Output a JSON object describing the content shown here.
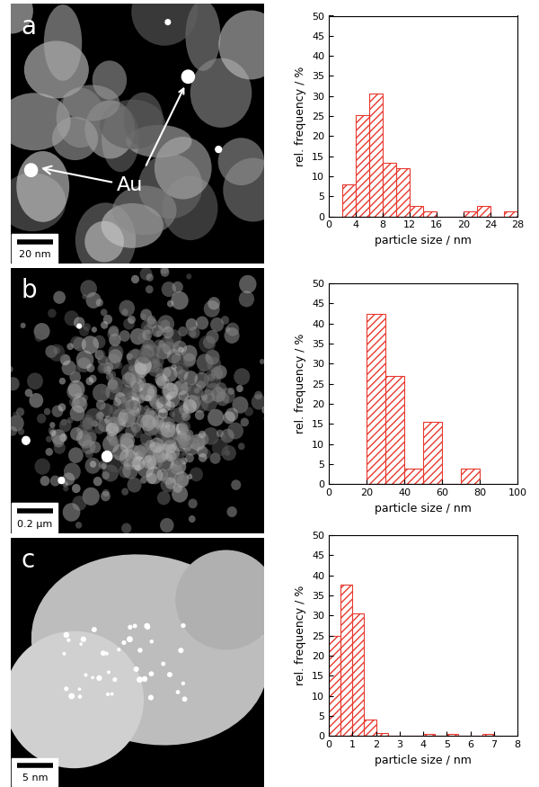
{
  "chart_data": [
    {
      "type": "histogram",
      "bins": [
        2,
        4,
        6,
        8,
        10,
        12,
        14,
        16,
        18,
        20,
        22,
        24,
        26,
        28
      ],
      "counts": [
        8,
        25.3,
        30.6,
        13.3,
        12,
        2.7,
        1.3,
        0,
        0,
        1.3,
        2.7,
        0,
        1.3
      ],
      "color": "#e8392f",
      "x_label": "particle size / nm",
      "y_label": "rel. frequency / %",
      "xlim": [
        0,
        28
      ],
      "xticks": [
        0,
        4,
        8,
        12,
        16,
        20,
        24,
        28
      ],
      "ylim": [
        0,
        50
      ],
      "yticks": [
        0,
        5,
        10,
        15,
        20,
        25,
        30,
        35,
        40,
        45,
        50
      ]
    },
    {
      "type": "histogram",
      "bins": [
        20,
        30,
        40,
        50,
        60,
        70,
        80
      ],
      "counts": [
        42.3,
        26.9,
        3.8,
        15.4,
        0,
        3.8
      ],
      "color": "#e8392f",
      "x_label": "particle size / nm",
      "y_label": "rel. frequency / %",
      "xlim": [
        0,
        100
      ],
      "xticks": [
        0,
        20,
        40,
        60,
        80,
        100
      ],
      "ylim": [
        0,
        50
      ],
      "yticks": [
        0,
        5,
        10,
        15,
        20,
        25,
        30,
        35,
        40,
        45,
        50
      ]
    },
    {
      "type": "histogram",
      "bins": [
        0,
        0.5,
        1,
        1.5,
        2,
        2.5,
        3,
        3.5,
        4,
        4.5,
        5,
        5.5,
        6,
        6.5,
        7
      ],
      "counts": [
        24.8,
        37.6,
        30.4,
        4,
        0.8,
        0,
        0,
        0,
        0.4,
        0,
        0.4,
        0,
        0,
        0.4
      ],
      "color": "#e8392f",
      "x_label": "particle size / nm",
      "y_label": "rel. frequency / %",
      "xlim": [
        0,
        8
      ],
      "xticks": [
        0,
        1,
        2,
        3,
        4,
        5,
        6,
        7,
        8
      ],
      "ylim": [
        0,
        50
      ],
      "yticks": [
        0,
        5,
        10,
        15,
        20,
        25,
        30,
        35,
        40,
        45,
        50
      ]
    }
  ],
  "panels": [
    {
      "label": "a",
      "annotation": "Au",
      "scale_bar": "20 nm"
    },
    {
      "label": "b",
      "scale_bar": "0.2 µm"
    },
    {
      "label": "c",
      "scale_bar": "5 nm"
    }
  ]
}
